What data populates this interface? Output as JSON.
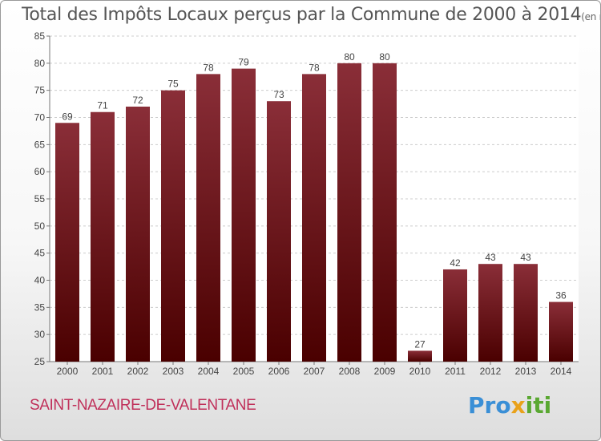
{
  "header": {
    "title": "Total des Impôts Locaux perçus par la Commune de 2000 à 2014",
    "unit": "(en milliers d'€)"
  },
  "commune": "SAINT-NAZAIRE-DE-VALENTANE",
  "logo": {
    "part1": "Pro",
    "part2": "x",
    "part3": "iti"
  },
  "colors": {
    "bar_top": "#8a2e38",
    "bar_bottom": "#4a0000",
    "grid": "#cccccc",
    "commune": "#c0305a"
  },
  "chart_data": {
    "type": "bar",
    "title": "Total des Impôts Locaux perçus par la Commune de 2000 à 2014",
    "xlabel": "",
    "ylabel": "",
    "categories": [
      "2000",
      "2001",
      "2002",
      "2003",
      "2004",
      "2005",
      "2006",
      "2007",
      "2008",
      "2009",
      "2010",
      "2011",
      "2012",
      "2013",
      "2014"
    ],
    "values": [
      69,
      71,
      72,
      75,
      78,
      79,
      73,
      78,
      80,
      80,
      27,
      42,
      43,
      43,
      36
    ],
    "ylim": [
      25,
      85
    ],
    "yticks": [
      25,
      30,
      35,
      40,
      45,
      50,
      55,
      60,
      65,
      70,
      75,
      80,
      85
    ],
    "grid": true,
    "data_labels": true
  }
}
